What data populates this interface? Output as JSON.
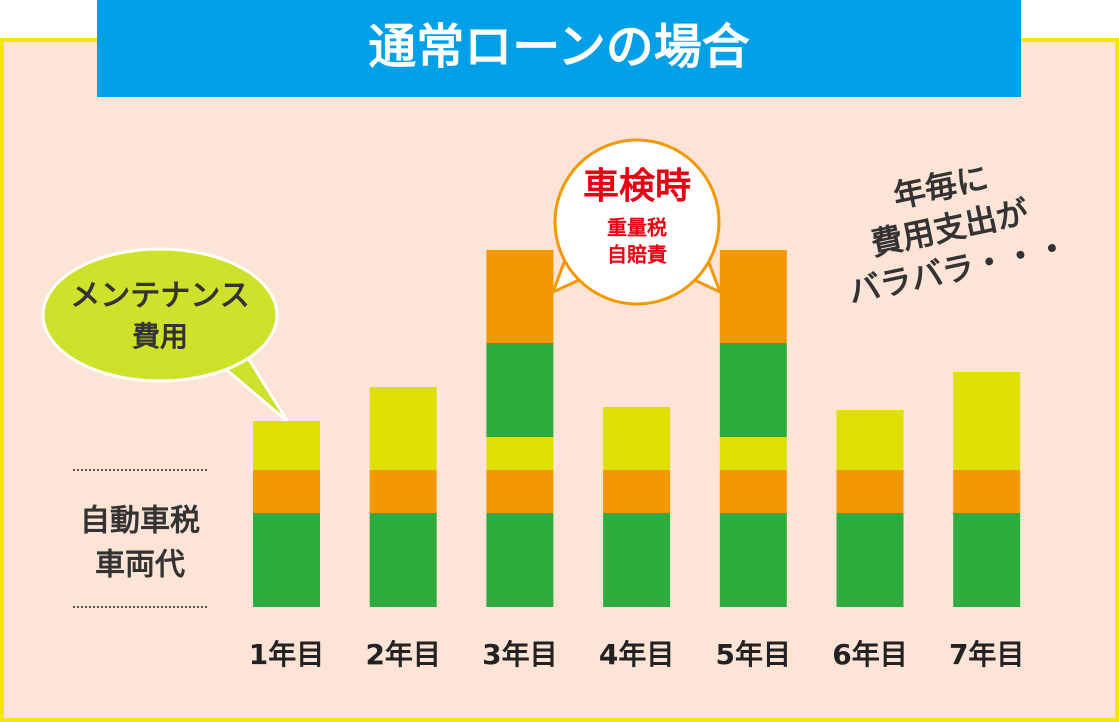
{
  "chart_data": {
    "type": "stacked-bar",
    "title": "通常ローンの場合",
    "categories": [
      "1年目",
      "2年目",
      "3年目",
      "4年目",
      "5年目",
      "6年目",
      "7年目"
    ],
    "series": [
      {
        "color": "#2eac3d",
        "values": [
          94,
          94,
          94,
          94,
          94,
          94,
          94
        ]
      },
      {
        "color": "#f39800",
        "values": [
          43,
          43,
          43,
          43,
          43,
          43,
          43
        ]
      },
      {
        "color": "#dde000",
        "values": [
          49,
          83,
          33,
          63,
          33,
          60,
          98
        ]
      },
      {
        "color": "#2eac3d",
        "values": [
          null,
          null,
          94,
          null,
          94,
          null,
          null
        ]
      },
      {
        "color": "#f39800",
        "values": [
          null,
          null,
          93,
          null,
          93,
          null,
          null
        ]
      }
    ],
    "ylim": [
      0,
      400
    ],
    "annotations": {
      "base_label": [
        "自動車税",
        "車両代"
      ],
      "maintenance": [
        "メンテナンス",
        "費用"
      ],
      "inspection": {
        "title": "車検時",
        "items": [
          "重量税",
          "自賠責"
        ]
      },
      "note": [
        "年毎に",
        "費用支出が",
        "バラバラ・・・"
      ]
    }
  }
}
